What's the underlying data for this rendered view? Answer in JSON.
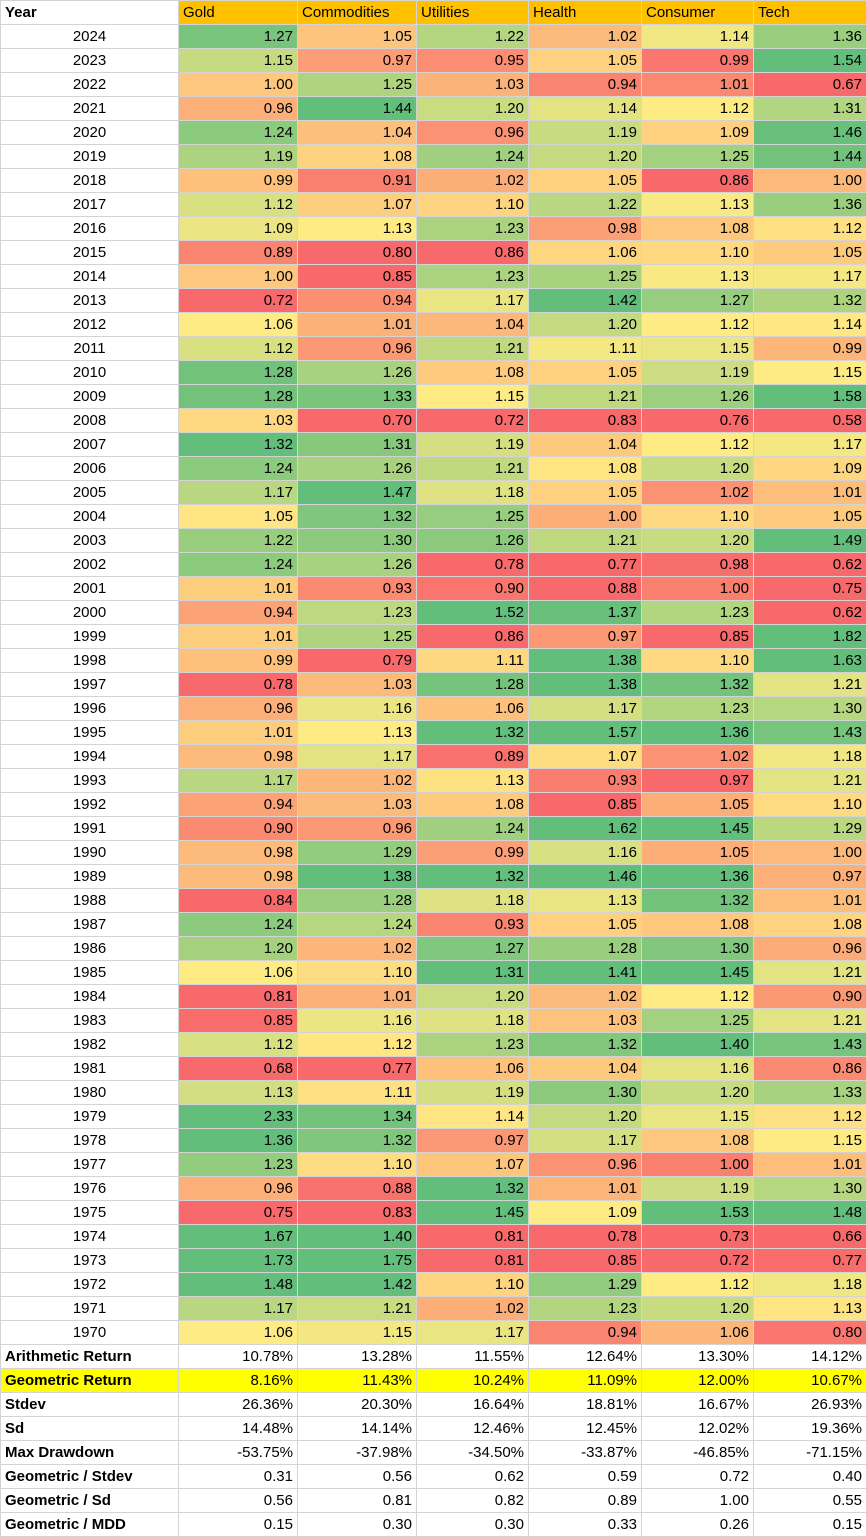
{
  "header": {
    "year_label": "Year",
    "columns": [
      "Gold",
      "Commodities",
      "Utilities",
      "Health",
      "Consumer",
      "Tech"
    ]
  },
  "rows": [
    {
      "year": "2024",
      "values": [
        "1.27",
        "1.05",
        "1.22",
        "1.02",
        "1.14",
        "1.36"
      ]
    },
    {
      "year": "2023",
      "values": [
        "1.15",
        "0.97",
        "0.95",
        "1.05",
        "0.99",
        "1.54"
      ]
    },
    {
      "year": "2022",
      "values": [
        "1.00",
        "1.25",
        "1.03",
        "0.94",
        "1.01",
        "0.67"
      ]
    },
    {
      "year": "2021",
      "values": [
        "0.96",
        "1.44",
        "1.20",
        "1.14",
        "1.12",
        "1.31"
      ]
    },
    {
      "year": "2020",
      "values": [
        "1.24",
        "1.04",
        "0.96",
        "1.19",
        "1.09",
        "1.46"
      ]
    },
    {
      "year": "2019",
      "values": [
        "1.19",
        "1.08",
        "1.24",
        "1.20",
        "1.25",
        "1.44"
      ]
    },
    {
      "year": "2018",
      "values": [
        "0.99",
        "0.91",
        "1.02",
        "1.05",
        "0.86",
        "1.00"
      ]
    },
    {
      "year": "2017",
      "values": [
        "1.12",
        "1.07",
        "1.10",
        "1.22",
        "1.13",
        "1.36"
      ]
    },
    {
      "year": "2016",
      "values": [
        "1.09",
        "1.13",
        "1.23",
        "0.98",
        "1.08",
        "1.12"
      ]
    },
    {
      "year": "2015",
      "values": [
        "0.89",
        "0.80",
        "0.86",
        "1.06",
        "1.10",
        "1.05"
      ]
    },
    {
      "year": "2014",
      "values": [
        "1.00",
        "0.85",
        "1.23",
        "1.25",
        "1.13",
        "1.17"
      ]
    },
    {
      "year": "2013",
      "values": [
        "0.72",
        "0.94",
        "1.17",
        "1.42",
        "1.27",
        "1.32"
      ]
    },
    {
      "year": "2012",
      "values": [
        "1.06",
        "1.01",
        "1.04",
        "1.20",
        "1.12",
        "1.14"
      ]
    },
    {
      "year": "2011",
      "values": [
        "1.12",
        "0.96",
        "1.21",
        "1.11",
        "1.15",
        "0.99"
      ]
    },
    {
      "year": "2010",
      "values": [
        "1.28",
        "1.26",
        "1.08",
        "1.05",
        "1.19",
        "1.15"
      ]
    },
    {
      "year": "2009",
      "values": [
        "1.28",
        "1.33",
        "1.15",
        "1.21",
        "1.26",
        "1.58"
      ]
    },
    {
      "year": "2008",
      "values": [
        "1.03",
        "0.70",
        "0.72",
        "0.83",
        "0.76",
        "0.58"
      ]
    },
    {
      "year": "2007",
      "values": [
        "1.32",
        "1.31",
        "1.19",
        "1.04",
        "1.12",
        "1.17"
      ]
    },
    {
      "year": "2006",
      "values": [
        "1.24",
        "1.26",
        "1.21",
        "1.08",
        "1.20",
        "1.09"
      ]
    },
    {
      "year": "2005",
      "values": [
        "1.17",
        "1.47",
        "1.18",
        "1.05",
        "1.02",
        "1.01"
      ]
    },
    {
      "year": "2004",
      "values": [
        "1.05",
        "1.32",
        "1.25",
        "1.00",
        "1.10",
        "1.05"
      ]
    },
    {
      "year": "2003",
      "values": [
        "1.22",
        "1.30",
        "1.26",
        "1.21",
        "1.20",
        "1.49"
      ]
    },
    {
      "year": "2002",
      "values": [
        "1.24",
        "1.26",
        "0.78",
        "0.77",
        "0.98",
        "0.62"
      ]
    },
    {
      "year": "2001",
      "values": [
        "1.01",
        "0.93",
        "0.90",
        "0.88",
        "1.00",
        "0.75"
      ]
    },
    {
      "year": "2000",
      "values": [
        "0.94",
        "1.23",
        "1.52",
        "1.37",
        "1.23",
        "0.62"
      ]
    },
    {
      "year": "1999",
      "values": [
        "1.01",
        "1.25",
        "0.86",
        "0.97",
        "0.85",
        "1.82"
      ]
    },
    {
      "year": "1998",
      "values": [
        "0.99",
        "0.79",
        "1.11",
        "1.38",
        "1.10",
        "1.63"
      ]
    },
    {
      "year": "1997",
      "values": [
        "0.78",
        "1.03",
        "1.28",
        "1.38",
        "1.32",
        "1.21"
      ]
    },
    {
      "year": "1996",
      "values": [
        "0.96",
        "1.16",
        "1.06",
        "1.17",
        "1.23",
        "1.30"
      ]
    },
    {
      "year": "1995",
      "values": [
        "1.01",
        "1.13",
        "1.32",
        "1.57",
        "1.36",
        "1.43"
      ]
    },
    {
      "year": "1994",
      "values": [
        "0.98",
        "1.17",
        "0.89",
        "1.07",
        "1.02",
        "1.18"
      ]
    },
    {
      "year": "1993",
      "values": [
        "1.17",
        "1.02",
        "1.13",
        "0.93",
        "0.97",
        "1.21"
      ]
    },
    {
      "year": "1992",
      "values": [
        "0.94",
        "1.03",
        "1.08",
        "0.85",
        "1.05",
        "1.10"
      ]
    },
    {
      "year": "1991",
      "values": [
        "0.90",
        "0.96",
        "1.24",
        "1.62",
        "1.45",
        "1.29"
      ]
    },
    {
      "year": "1990",
      "values": [
        "0.98",
        "1.29",
        "0.99",
        "1.16",
        "1.05",
        "1.00"
      ]
    },
    {
      "year": "1989",
      "values": [
        "0.98",
        "1.38",
        "1.32",
        "1.46",
        "1.36",
        "0.97"
      ]
    },
    {
      "year": "1988",
      "values": [
        "0.84",
        "1.28",
        "1.18",
        "1.13",
        "1.32",
        "1.01"
      ]
    },
    {
      "year": "1987",
      "values": [
        "1.24",
        "1.24",
        "0.93",
        "1.05",
        "1.08",
        "1.08"
      ]
    },
    {
      "year": "1986",
      "values": [
        "1.20",
        "1.02",
        "1.27",
        "1.28",
        "1.30",
        "0.96"
      ]
    },
    {
      "year": "1985",
      "values": [
        "1.06",
        "1.10",
        "1.31",
        "1.41",
        "1.45",
        "1.21"
      ]
    },
    {
      "year": "1984",
      "values": [
        "0.81",
        "1.01",
        "1.20",
        "1.02",
        "1.12",
        "0.90"
      ]
    },
    {
      "year": "1983",
      "values": [
        "0.85",
        "1.16",
        "1.18",
        "1.03",
        "1.25",
        "1.21"
      ]
    },
    {
      "year": "1982",
      "values": [
        "1.12",
        "1.12",
        "1.23",
        "1.32",
        "1.40",
        "1.43"
      ]
    },
    {
      "year": "1981",
      "values": [
        "0.68",
        "0.77",
        "1.06",
        "1.04",
        "1.16",
        "0.86"
      ]
    },
    {
      "year": "1980",
      "values": [
        "1.13",
        "1.11",
        "1.19",
        "1.30",
        "1.20",
        "1.33"
      ]
    },
    {
      "year": "1979",
      "values": [
        "2.33",
        "1.34",
        "1.14",
        "1.20",
        "1.15",
        "1.12"
      ]
    },
    {
      "year": "1978",
      "values": [
        "1.36",
        "1.32",
        "0.97",
        "1.17",
        "1.08",
        "1.15"
      ]
    },
    {
      "year": "1977",
      "values": [
        "1.23",
        "1.10",
        "1.07",
        "0.96",
        "1.00",
        "1.01"
      ]
    },
    {
      "year": "1976",
      "values": [
        "0.96",
        "0.88",
        "1.32",
        "1.01",
        "1.19",
        "1.30"
      ]
    },
    {
      "year": "1975",
      "values": [
        "0.75",
        "0.83",
        "1.45",
        "1.09",
        "1.53",
        "1.48"
      ]
    },
    {
      "year": "1974",
      "values": [
        "1.67",
        "1.40",
        "0.81",
        "0.78",
        "0.73",
        "0.66"
      ]
    },
    {
      "year": "1973",
      "values": [
        "1.73",
        "1.75",
        "0.81",
        "0.85",
        "0.72",
        "0.77"
      ]
    },
    {
      "year": "1972",
      "values": [
        "1.48",
        "1.42",
        "1.10",
        "1.29",
        "1.12",
        "1.18"
      ]
    },
    {
      "year": "1971",
      "values": [
        "1.17",
        "1.21",
        "1.02",
        "1.23",
        "1.20",
        "1.13"
      ]
    },
    {
      "year": "1970",
      "values": [
        "1.06",
        "1.15",
        "1.17",
        "0.94",
        "1.06",
        "0.80"
      ]
    }
  ],
  "summary": [
    {
      "label": "Arithmetic Return",
      "values": [
        "10.78%",
        "13.28%",
        "11.55%",
        "12.64%",
        "13.30%",
        "14.12%"
      ],
      "highlight": false
    },
    {
      "label": "Geometric Return",
      "values": [
        "8.16%",
        "11.43%",
        "10.24%",
        "11.09%",
        "12.00%",
        "10.67%"
      ],
      "highlight": true
    },
    {
      "label": "Stdev",
      "values": [
        "26.36%",
        "20.30%",
        "16.64%",
        "18.81%",
        "16.67%",
        "26.93%"
      ],
      "highlight": false
    },
    {
      "label": "Sd",
      "values": [
        "14.48%",
        "14.14%",
        "12.46%",
        "12.45%",
        "12.02%",
        "19.36%"
      ],
      "highlight": false
    },
    {
      "label": "Max Drawdown",
      "values": [
        "-53.75%",
        "-37.98%",
        "-34.50%",
        "-33.87%",
        "-46.85%",
        "-71.15%"
      ],
      "highlight": false
    },
    {
      "label": "Geometric / Stdev",
      "values": [
        "0.31",
        "0.56",
        "0.62",
        "0.59",
        "0.72",
        "0.40"
      ],
      "highlight": false
    },
    {
      "label": "Geometric / Sd",
      "values": [
        "0.56",
        "0.81",
        "0.82",
        "0.89",
        "1.00",
        "0.55"
      ],
      "highlight": false
    },
    {
      "label": "Geometric / MDD",
      "values": [
        "0.15",
        "0.30",
        "0.30",
        "0.33",
        "0.26",
        "0.15"
      ],
      "highlight": false
    }
  ],
  "colors": {
    "header_bg": "#ffc000",
    "highlight": "#ffff00",
    "scale_low": "#f8696b",
    "scale_mid": "#ffeb84",
    "scale_high": "#63be7b"
  }
}
